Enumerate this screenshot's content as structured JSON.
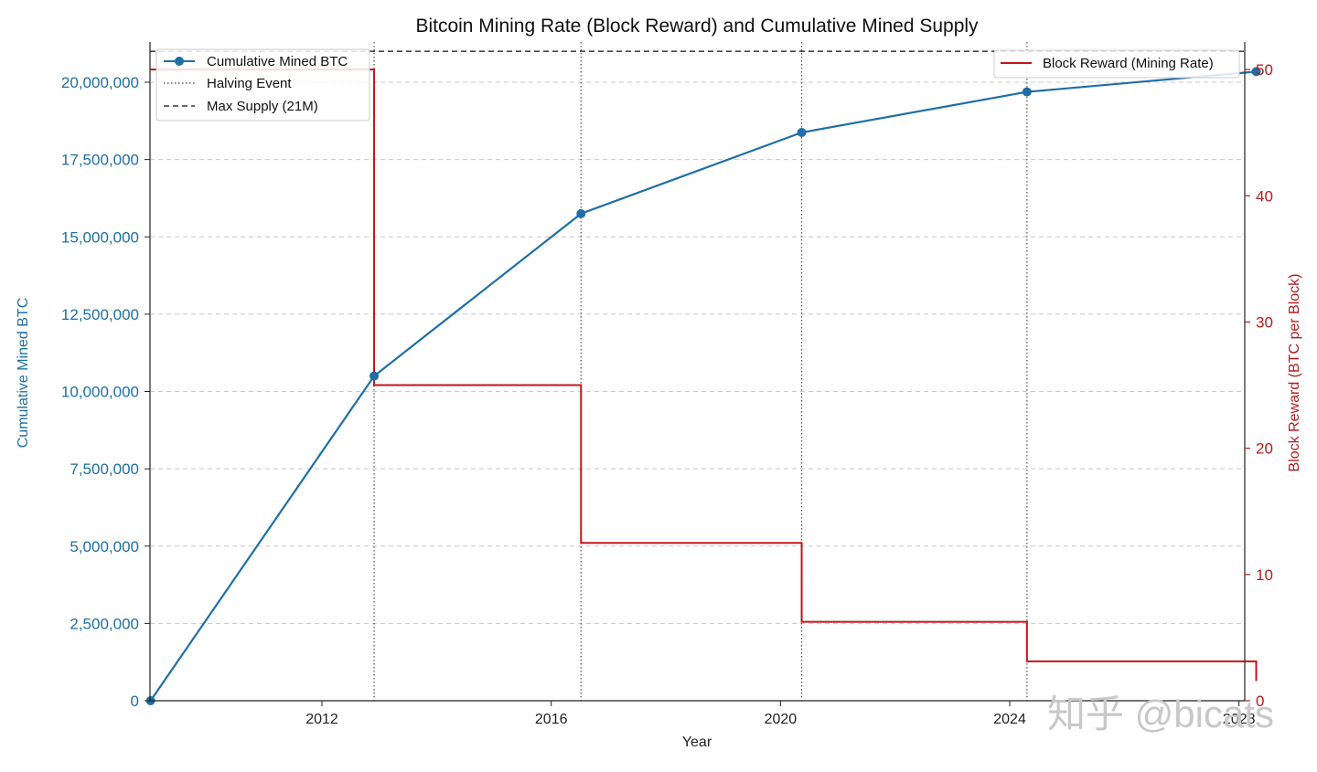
{
  "chart_data": {
    "type": "line",
    "title": "Bitcoin Mining Rate (Block Reward) and Cumulative Mined Supply",
    "xlabel": "Year",
    "ylabel_left": "Cumulative Mined BTC",
    "ylabel_right": "Block Reward (BTC per Block)",
    "xlim": [
      2009.0,
      2028.1
    ],
    "ylim_left": [
      0,
      21300000
    ],
    "ylim_right": [
      0,
      52.18
    ],
    "x_ticks": [
      2012,
      2016,
      2020,
      2024,
      2028
    ],
    "x_tick_labels": [
      "2012",
      "2016",
      "2020",
      "2024",
      "2028"
    ],
    "y_left_ticks": [
      0,
      2500000,
      5000000,
      7500000,
      10000000,
      12500000,
      15000000,
      17500000,
      20000000
    ],
    "y_left_tick_labels": [
      "0",
      "2,500,000",
      "5,000,000",
      "7,500,000",
      "10,000,000",
      "12,500,000",
      "15,000,000",
      "17,500,000",
      "20,000,000"
    ],
    "y_right_ticks": [
      0,
      10,
      20,
      30,
      40,
      50
    ],
    "y_right_tick_labels": [
      "0",
      "10",
      "20",
      "30",
      "40",
      "50"
    ],
    "grid": "horizontal-dashed",
    "series": [
      {
        "name": "Cumulative Mined BTC",
        "axis": "left",
        "style": "line-marker",
        "color": "#1f6fa6",
        "x": [
          2009.01,
          2012.91,
          2016.52,
          2020.37,
          2024.3,
          2028.3
        ],
        "y": [
          0,
          10500000,
          15750000,
          18375000,
          19687500,
          20343750
        ]
      },
      {
        "name": "Block Reward (Mining Rate)",
        "axis": "right",
        "style": "step-post",
        "color": "#c0161c",
        "x": [
          2009.01,
          2012.91,
          2016.52,
          2020.37,
          2024.3,
          2028.3
        ],
        "y": [
          50,
          25,
          12.5,
          6.25,
          3.125,
          1.5625
        ]
      }
    ],
    "halving_events": [
      2012.91,
      2016.52,
      2020.37,
      2024.3
    ],
    "max_supply": 21000000,
    "legend_left": {
      "placement": "top-left",
      "entries": [
        "Cumulative Mined BTC",
        "Halving Event",
        "Max Supply (21M)"
      ]
    },
    "legend_right": {
      "placement": "top-right",
      "entries": [
        "Block Reward (Mining Rate)"
      ]
    }
  },
  "watermark": "知乎 @bicats",
  "colors": {
    "supply": "#1f6fa6",
    "reward": "#c0161c",
    "grid": "#c8c8c8",
    "axis": "#222222"
  }
}
